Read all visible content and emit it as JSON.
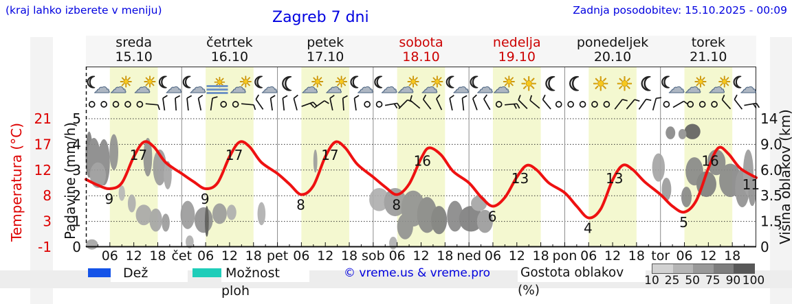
{
  "header": {
    "hint": "(kraj lahko izberete v meniju)",
    "title": "Zagreb 7 dni",
    "updated": "Zadnja posodobitev: 15.10.2025 - 00:09",
    "accent_color": "#0000e0"
  },
  "days": [
    {
      "name": "sreda",
      "date": "15.10",
      "color": "#111111",
      "icons": [
        "moon-cloud",
        "sun-cloud",
        "sun-cloud",
        "moon-cloud"
      ]
    },
    {
      "name": "četrtek",
      "date": "16.10",
      "color": "#111111",
      "icons": [
        "moon-cloud",
        "fog-sun",
        "sun-cloud",
        "moon-cloud"
      ]
    },
    {
      "name": "petek",
      "date": "17.10",
      "color": "#111111",
      "icons": [
        "moon",
        "sun-cloud",
        "sun-cloud",
        "moon-cloud"
      ]
    },
    {
      "name": "sobota",
      "date": "18.10",
      "color": "#cc0000",
      "icons": [
        "moon-cloud",
        "sun-cloud",
        "sun-cloud",
        "moon-cloud"
      ]
    },
    {
      "name": "nedelja",
      "date": "19.10",
      "color": "#cc0000",
      "icons": [
        "moon-cloud",
        "sun-cloud",
        "sun",
        "moon"
      ]
    },
    {
      "name": "ponedeljek",
      "date": "20.10",
      "color": "#111111",
      "icons": [
        "moon",
        "sun",
        "sun",
        "moon"
      ]
    },
    {
      "name": "torek",
      "date": "21.10",
      "color": "#111111",
      "icons": [
        "moon-cloud",
        "sun-cloud",
        "sun-cloud",
        "moon-cloud"
      ]
    }
  ],
  "axes": {
    "temp": {
      "title": "Temperatura (°C)",
      "ticks": [
        "21",
        "17",
        "12",
        "8",
        "3",
        "-1"
      ],
      "color": "#dd0000"
    },
    "precip": {
      "title": "Padavine (mm/h)",
      "ticks": [
        "5",
        "4",
        "3",
        "2",
        "1",
        "0"
      ]
    },
    "cloud_height": {
      "title": "Višina oblakov (km)",
      "ticks": [
        "14",
        "9.0",
        "6.0",
        "3.5",
        "1.5",
        "0"
      ]
    },
    "x": {
      "hours": [
        "06",
        "12",
        "18"
      ],
      "day_abbrevs": [
        "čet",
        "pet",
        "sob",
        "ned",
        "pon",
        "tor"
      ]
    }
  },
  "legend": {
    "rain": {
      "label": "Dež",
      "color": "#1453e8"
    },
    "showers": {
      "label": "Možnost ploh",
      "color": "#1fcdb9"
    },
    "credit": "© vreme.us & vreme.pro",
    "cloud_density": {
      "label": "Gostota oblakov (%)",
      "stops": [
        "10",
        "25",
        "50",
        "75",
        "90",
        "100"
      ],
      "colors": [
        "#d2d2d2",
        "#b5b5b5",
        "#999999",
        "#7d7d7d",
        "#585858"
      ]
    }
  },
  "chart_data": {
    "type": "line",
    "title": "Zagreb 7 dni",
    "x_axis": {
      "unit": "hours",
      "range": [
        0,
        168
      ],
      "tick_step": 3,
      "day_starts": [
        0,
        24,
        48,
        72,
        96,
        120,
        144
      ]
    },
    "y_left": {
      "label": "Padavine (mm/h)",
      "range": [
        0,
        5
      ],
      "grid": "dotted"
    },
    "y_right": {
      "label": "Višina oblakov (km)",
      "tick_values": [
        0,
        1.5,
        3.5,
        6.0,
        9.0,
        14
      ]
    },
    "temp_axis_c": [
      -1,
      3,
      8,
      12,
      17,
      21
    ],
    "day_band_hours": [
      6,
      18
    ],
    "day_band_color": "#f4f8d0",
    "temperature": {
      "name": "Temperatura",
      "color": "#ee1111",
      "points": [
        [
          0,
          10.6
        ],
        [
          3,
          9.6
        ],
        [
          6,
          9
        ],
        [
          9,
          10
        ],
        [
          12,
          14.5
        ],
        [
          14.5,
          17
        ],
        [
          17,
          16.2
        ],
        [
          20,
          13.5
        ],
        [
          24,
          11.6
        ],
        [
          27,
          10.2
        ],
        [
          30,
          9
        ],
        [
          33,
          10
        ],
        [
          36,
          14.5
        ],
        [
          38.5,
          17
        ],
        [
          41,
          16.2
        ],
        [
          44,
          13.5
        ],
        [
          48,
          11.6
        ],
        [
          51,
          9.8
        ],
        [
          54,
          8
        ],
        [
          57,
          9.5
        ],
        [
          60,
          14.5
        ],
        [
          62.5,
          17
        ],
        [
          65,
          16
        ],
        [
          68,
          13.2
        ],
        [
          72,
          11
        ],
        [
          75,
          9.3
        ],
        [
          78,
          8
        ],
        [
          81,
          9.8
        ],
        [
          84,
          14.2
        ],
        [
          86,
          16
        ],
        [
          89,
          14.8
        ],
        [
          92,
          12
        ],
        [
          96,
          10
        ],
        [
          99,
          7.6
        ],
        [
          102,
          6
        ],
        [
          105,
          7.5
        ],
        [
          108,
          11
        ],
        [
          110.5,
          13
        ],
        [
          113,
          12.2
        ],
        [
          116,
          10
        ],
        [
          120,
          8.3
        ],
        [
          123,
          6
        ],
        [
          126,
          4
        ],
        [
          129,
          5.5
        ],
        [
          132,
          10.5
        ],
        [
          134.5,
          13
        ],
        [
          137,
          12.3
        ],
        [
          140,
          10.2
        ],
        [
          144,
          8
        ],
        [
          147,
          6
        ],
        [
          150,
          5
        ],
        [
          153,
          7
        ],
        [
          156,
          12.5
        ],
        [
          158.5,
          16
        ],
        [
          161,
          15
        ],
        [
          164,
          12.5
        ],
        [
          168,
          10.9
        ]
      ],
      "labels": [
        [
          5.5,
          9,
          "9",
          2,
          22
        ],
        [
          13.5,
          17,
          "17",
          -2,
          26
        ],
        [
          29.5,
          9,
          "9",
          2,
          22
        ],
        [
          37.5,
          17,
          "17",
          -2,
          26
        ],
        [
          53.5,
          8,
          "8",
          2,
          22
        ],
        [
          61.5,
          17,
          "17",
          -2,
          26
        ],
        [
          77.5,
          8,
          "8",
          2,
          22
        ],
        [
          85,
          16,
          "16",
          -4,
          26
        ],
        [
          101.5,
          6,
          "6",
          2,
          22
        ],
        [
          109.5,
          13,
          "13",
          -4,
          26
        ],
        [
          125.5,
          4,
          "4",
          2,
          22
        ],
        [
          133.5,
          13,
          "13",
          -6,
          26
        ],
        [
          149.5,
          5,
          "5",
          2,
          22
        ],
        [
          157.5,
          16,
          "16",
          -6,
          26
        ],
        [
          166,
          11,
          "11",
          4,
          18
        ]
      ]
    },
    "clouds": [
      [
        0.8,
        3.6,
        0.9,
        0.9,
        0.55
      ],
      [
        2,
        3.4,
        1.7,
        0.85,
        0.5
      ],
      [
        4.5,
        3.3,
        1.5,
        0.9,
        0.5
      ],
      [
        7,
        3.7,
        1.1,
        0.7,
        0.45
      ],
      [
        3,
        2.8,
        2,
        0.5,
        0.4
      ],
      [
        9,
        2.1,
        0.8,
        0.3,
        0.25
      ],
      [
        11.5,
        1.7,
        1,
        0.35,
        0.3
      ],
      [
        15.5,
        3.5,
        1.1,
        0.75,
        0.45
      ],
      [
        18.5,
        3.1,
        1.7,
        0.7,
        0.4
      ],
      [
        20.5,
        2.8,
        1,
        0.55,
        0.35
      ],
      [
        14.5,
        1.25,
        2,
        0.4,
        0.33
      ],
      [
        17.5,
        1.05,
        1.6,
        0.45,
        0.35
      ],
      [
        20,
        0.95,
        1,
        0.35,
        0.4
      ],
      [
        25.5,
        1.25,
        1.8,
        0.55,
        0.4
      ],
      [
        29.5,
        1.05,
        2.3,
        0.5,
        0.45
      ],
      [
        30.3,
        1,
        0.5,
        0.6,
        0.75
      ],
      [
        33.5,
        1.3,
        1.8,
        0.4,
        0.4
      ],
      [
        36.5,
        1.35,
        1.2,
        0.3,
        0.3
      ],
      [
        26,
        0.2,
        1,
        0.25,
        0.3
      ],
      [
        1.5,
        0.1,
        1.5,
        0.2,
        0.35
      ],
      [
        44,
        1.3,
        1,
        0.45,
        0.3
      ],
      [
        57.5,
        3.35,
        0.5,
        0.45,
        0.4
      ],
      [
        73.5,
        1.85,
        2.5,
        0.45,
        0.3
      ],
      [
        77.5,
        1.75,
        2.8,
        0.55,
        0.4
      ],
      [
        82,
        1.5,
        3,
        0.7,
        0.45
      ],
      [
        85.5,
        1.25,
        2.5,
        0.7,
        0.5
      ],
      [
        88.5,
        1.05,
        2,
        0.55,
        0.55
      ],
      [
        80,
        0.8,
        2,
        0.5,
        0.45
      ],
      [
        92.5,
        1.2,
        2,
        0.6,
        0.5
      ],
      [
        96.5,
        1.1,
        3,
        0.5,
        0.55
      ],
      [
        100,
        1,
        2,
        0.45,
        0.4
      ],
      [
        98.5,
        1.7,
        2,
        0.3,
        0.35
      ],
      [
        77,
        0.15,
        1,
        0.25,
        0.3
      ],
      [
        143.5,
        3.1,
        1.6,
        0.55,
        0.35
      ],
      [
        145.5,
        2.25,
        1.2,
        0.45,
        0.4
      ],
      [
        146.5,
        4.45,
        1.2,
        0.25,
        0.5
      ],
      [
        152,
        4.5,
        2,
        0.3,
        0.7
      ],
      [
        149.5,
        4.4,
        1,
        0.2,
        0.45
      ],
      [
        152.5,
        2.95,
        2.2,
        0.55,
        0.5
      ],
      [
        155.5,
        2.45,
        2.5,
        0.5,
        0.55
      ],
      [
        158,
        3.3,
        2.3,
        0.5,
        0.5
      ],
      [
        161.5,
        2.6,
        2.8,
        0.65,
        0.5
      ],
      [
        164.5,
        2.3,
        1.8,
        0.75,
        0.45
      ],
      [
        150.5,
        1.95,
        1.3,
        0.4,
        0.5
      ],
      [
        166,
        2.9,
        1.3,
        0.9,
        0.4
      ],
      [
        167,
        2.2,
        1,
        0.6,
        0.45
      ]
    ],
    "wind_3h": [
      "c",
      "c",
      "c",
      "c",
      "c",
      "95/1",
      "-8/1",
      "-4/1",
      "-6/1",
      "-12/1",
      "8/1",
      "c",
      "c",
      "95/1",
      "-35/1",
      "-8/1",
      "-6/1",
      "-15/1",
      "70/2",
      "55/1",
      "-12/1",
      "-4/1",
      "-8/1",
      "c",
      "c",
      "80/2",
      "45/1",
      "-50/1",
      "-38/1",
      "-25/1",
      "-12/1",
      "-6/1",
      "-20/1",
      "-30/1",
      "c",
      "85/2",
      "-45/1",
      "-50/1",
      "-40/1",
      "c",
      "c",
      "c",
      "c",
      "c",
      "38/1",
      "40/1",
      "35/1",
      "15/1",
      "c",
      "60/1",
      "c",
      "c",
      "c",
      "-42/1",
      "-38/1",
      "80/2"
    ]
  }
}
